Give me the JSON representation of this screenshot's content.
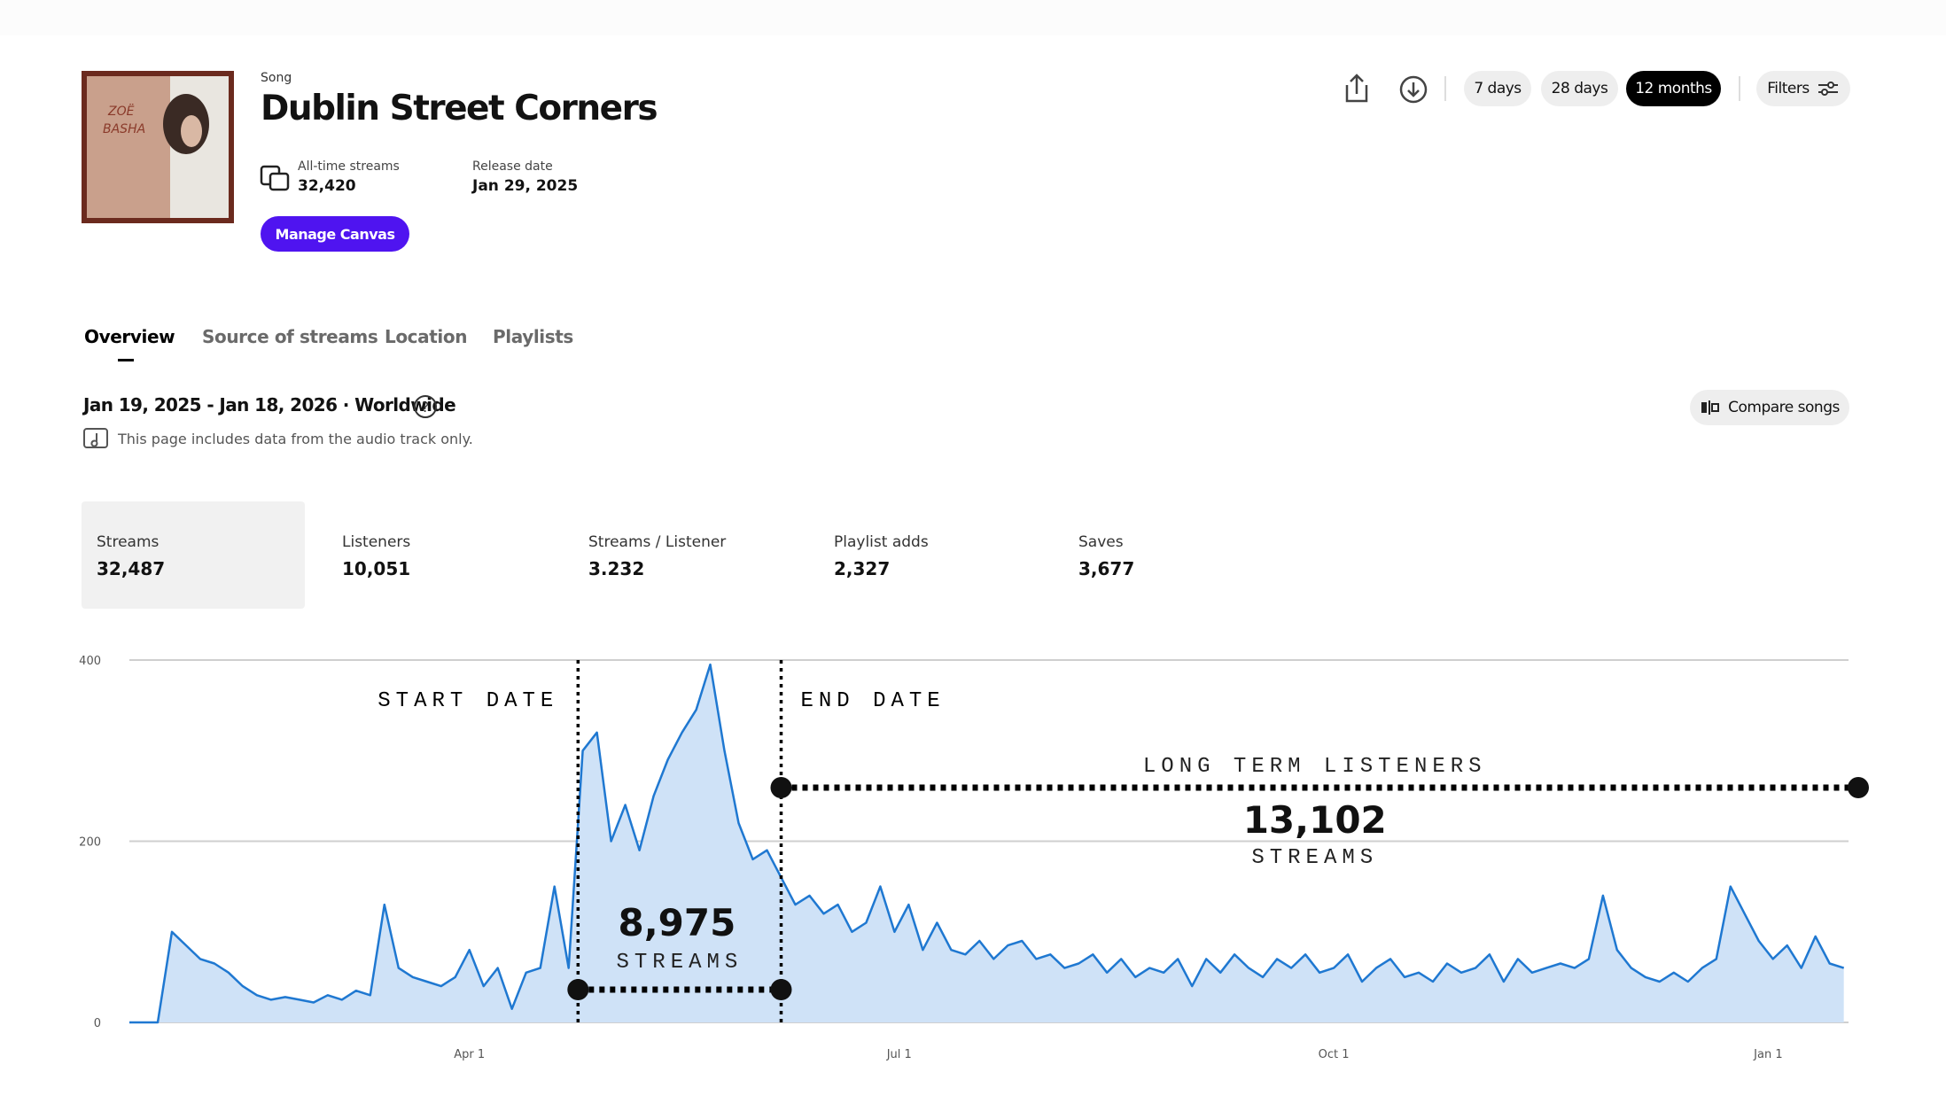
{
  "header": {
    "label": "Song",
    "title": "Dublin Street Corners",
    "stats": [
      {
        "label": "All-time streams",
        "value": "32,420"
      },
      {
        "label": "Release date",
        "value": "Jan 29, 2025"
      }
    ],
    "button": "Manage Canvas"
  },
  "toolbar": {
    "ranges": [
      {
        "label": "7 days",
        "selected": false
      },
      {
        "label": "28 days",
        "selected": false
      },
      {
        "label": "12 months",
        "selected": true
      }
    ],
    "filters": "Filters"
  },
  "tabs": [
    {
      "label": "Overview",
      "selected": true
    },
    {
      "label": "Source of streams",
      "selected": false
    },
    {
      "label": "Location",
      "selected": false
    },
    {
      "label": "Playlists",
      "selected": false
    }
  ],
  "period": "Jan 19, 2025 - Jan 18, 2026 · Worldwide",
  "note": "This page includes data from the audio track only.",
  "compare": "Compare songs",
  "metrics": [
    {
      "label": "Streams",
      "value": "32,487",
      "selected": true
    },
    {
      "label": "Listeners",
      "value": "10,051",
      "selected": false
    },
    {
      "label": "Streams / Listener",
      "value": "3.232",
      "selected": false
    },
    {
      "label": "Playlist adds",
      "value": "2,327",
      "selected": false
    },
    {
      "label": "Saves",
      "value": "3,677",
      "selected": false
    }
  ],
  "chart_data": {
    "type": "area",
    "color": "#1f78d1",
    "fill": "#cfe2f7",
    "grid": true,
    "x": [
      0,
      3,
      6,
      9,
      12,
      15,
      18,
      21,
      24,
      27,
      30,
      33,
      36,
      39,
      42,
      45,
      48,
      51,
      54,
      57,
      60,
      63,
      66,
      69,
      72,
      75,
      78,
      81,
      84,
      87,
      90,
      93,
      96,
      99,
      102,
      105,
      108,
      111,
      114,
      117,
      120,
      123,
      126,
      129,
      132,
      135,
      138,
      141,
      144,
      147,
      150,
      153,
      156,
      159,
      162,
      165,
      168,
      171,
      174,
      177,
      180,
      183,
      186,
      189,
      192,
      195,
      198,
      201,
      204,
      207,
      210,
      213,
      216,
      219,
      222,
      225,
      228,
      231,
      234,
      237,
      240,
      243,
      246,
      249,
      252,
      255,
      258,
      261,
      264,
      267,
      270,
      273,
      276,
      279,
      282,
      285,
      288,
      291,
      294,
      297,
      300,
      303,
      306,
      309,
      312,
      315,
      318,
      321,
      324,
      327,
      330,
      333,
      336,
      339,
      342,
      345,
      348,
      351,
      354,
      357,
      360,
      363
    ],
    "values": [
      0,
      0,
      0,
      100,
      85,
      70,
      65,
      55,
      40,
      30,
      25,
      28,
      25,
      22,
      30,
      25,
      35,
      30,
      130,
      60,
      50,
      45,
      40,
      50,
      80,
      40,
      60,
      15,
      55,
      60,
      150,
      60,
      300,
      320,
      200,
      240,
      190,
      250,
      290,
      320,
      345,
      395,
      300,
      220,
      180,
      190,
      160,
      130,
      140,
      120,
      130,
      100,
      110,
      150,
      100,
      130,
      80,
      110,
      80,
      75,
      90,
      70,
      85,
      90,
      70,
      75,
      60,
      65,
      75,
      55,
      70,
      50,
      60,
      55,
      70,
      40,
      70,
      55,
      75,
      60,
      50,
      70,
      60,
      75,
      55,
      60,
      75,
      45,
      60,
      70,
      50,
      55,
      45,
      65,
      55,
      60,
      75,
      45,
      70,
      55,
      60,
      65,
      60,
      70,
      140,
      80,
      60,
      50,
      45,
      55,
      45,
      60,
      70,
      150,
      120,
      90,
      70,
      85,
      60,
      95,
      65,
      60
    ],
    "xlim": [
      0,
      364
    ],
    "ylim": [
      0,
      400
    ],
    "yticks": [
      0,
      200,
      400
    ],
    "xticks": [
      {
        "value": 72,
        "label": "Apr 1"
      },
      {
        "value": 163,
        "label": "Jul 1"
      },
      {
        "value": 255,
        "label": "Oct 1"
      },
      {
        "value": 347,
        "label": "Jan 1"
      }
    ],
    "markers": [
      {
        "label": "START DATE",
        "x": 95
      },
      {
        "label": "END DATE",
        "x": 138
      }
    ],
    "callouts": [
      {
        "value": "8,975",
        "unit": "STREAMS"
      },
      {
        "title": "LONG TERM LISTENERS",
        "value": "13,102",
        "unit": "STREAMS"
      }
    ]
  }
}
